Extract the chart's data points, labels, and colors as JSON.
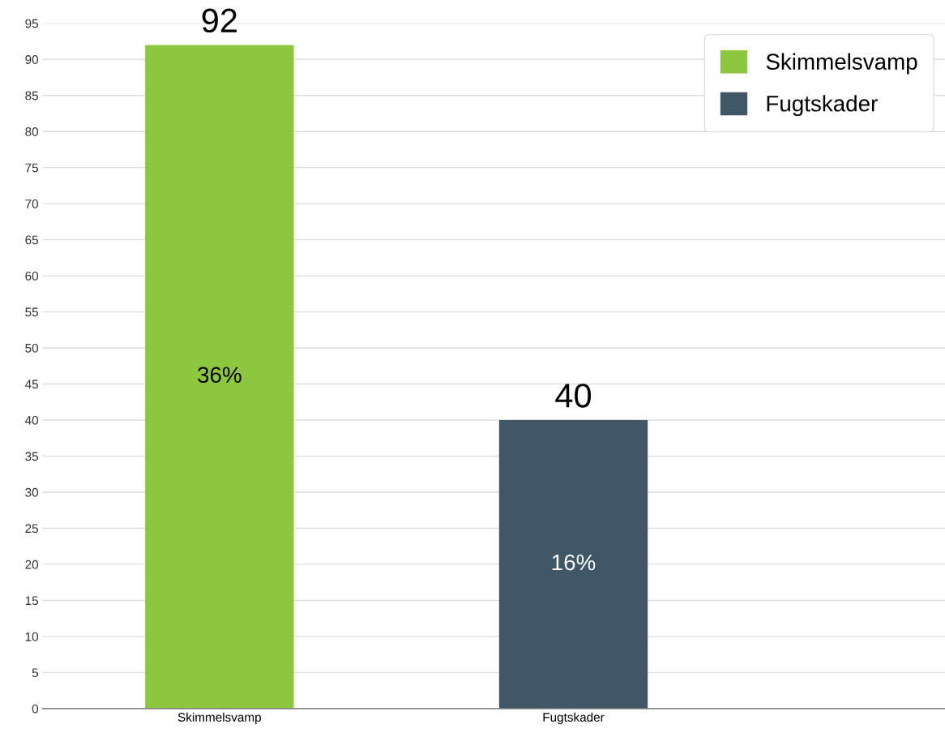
{
  "chart_data": {
    "type": "bar",
    "stacked": true,
    "categories": [
      "Skimmelsvamp",
      "Fugtskader"
    ],
    "series": [
      {
        "name": "Skimmelsvamp",
        "color": "#8dc63f",
        "values": [
          92,
          null
        ]
      },
      {
        "name": "Fugtskader",
        "color": "#3f5766",
        "values": [
          null,
          40
        ]
      }
    ],
    "ylim": [
      0,
      95
    ],
    "yticks": [
      0,
      5,
      10,
      15,
      20,
      25,
      30,
      35,
      40,
      45,
      50,
      55,
      60,
      65,
      70,
      75,
      80,
      85,
      90,
      95
    ],
    "grid": "y",
    "legend": "top right",
    "data_labels": true,
    "annotations": [
      "36%",
      "16%"
    ]
  }
}
